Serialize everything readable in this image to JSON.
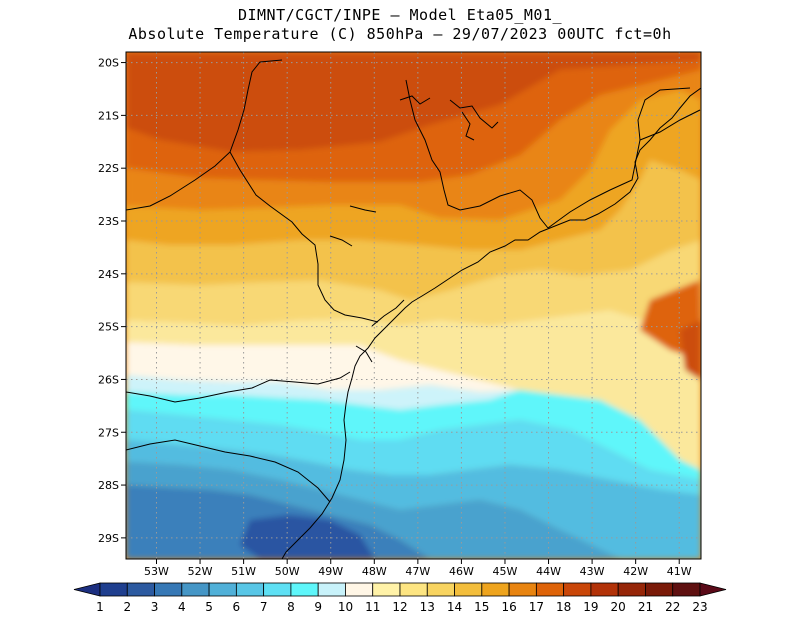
{
  "title": {
    "line1": "DIMNT/CGCT/INPE –  Model Eta05_M01_",
    "line2": "Absolute Temperature (C) 850hPa –  29/07/2023 00UTC fct=0h"
  },
  "map": {
    "lon_range": [
      -53.7,
      -40.5
    ],
    "lat_range": [
      -29.4,
      -19.8
    ],
    "lat_ticks": [
      {
        "value": -20,
        "label": "20S"
      },
      {
        "value": -21,
        "label": "21S"
      },
      {
        "value": -22,
        "label": "22S"
      },
      {
        "value": -23,
        "label": "23S"
      },
      {
        "value": -24,
        "label": "24S"
      },
      {
        "value": -25,
        "label": "25S"
      },
      {
        "value": -26,
        "label": "26S"
      },
      {
        "value": -27,
        "label": "27S"
      },
      {
        "value": -28,
        "label": "28S"
      },
      {
        "value": -29,
        "label": "29S"
      }
    ],
    "lon_ticks": [
      {
        "value": -53,
        "label": "53W"
      },
      {
        "value": -52,
        "label": "52W"
      },
      {
        "value": -51,
        "label": "51W"
      },
      {
        "value": -50,
        "label": "50W"
      },
      {
        "value": -49,
        "label": "49W"
      },
      {
        "value": -48,
        "label": "48W"
      },
      {
        "value": -47,
        "label": "47W"
      },
      {
        "value": -46,
        "label": "46W"
      },
      {
        "value": -45,
        "label": "45W"
      },
      {
        "value": -44,
        "label": "44W"
      },
      {
        "value": -43,
        "label": "43W"
      },
      {
        "value": -42,
        "label": "42W"
      },
      {
        "value": -41,
        "label": "41W"
      }
    ]
  },
  "colorbar": {
    "labels": [
      "1",
      "2",
      "3",
      "4",
      "5",
      "6",
      "7",
      "8",
      "9",
      "10",
      "11",
      "12",
      "13",
      "14",
      "15",
      "16",
      "17",
      "18",
      "19",
      "20",
      "21",
      "22",
      "23"
    ],
    "colors": [
      "#1f3f8f",
      "#2c5aa0",
      "#3678b5",
      "#4596c6",
      "#50b0d8",
      "#58c6e6",
      "#5ee0f4",
      "#5ef6fa",
      "#c8f2fa",
      "#fff6e6",
      "#fff2a8",
      "#fde582",
      "#f8d460",
      "#f3be3c",
      "#eea41e",
      "#e88410",
      "#de6308",
      "#c94608",
      "#b23208",
      "#962608",
      "#7a1a08",
      "#5f1010"
    ],
    "under_color": "#1c2f80",
    "over_color": "#5a0a18"
  },
  "field_colors": {
    "c5": "#2a55a2",
    "c6": "#3b80bb",
    "c7": "#48a2ce",
    "c8": "#52bce0",
    "c9": "#5edcf2",
    "c10": "#5ff6fa",
    "c11": "#cdf3fa",
    "c12": "#fff7e8",
    "c13": "#fbe89c",
    "c14": "#f8d874",
    "c15": "#f3c24c",
    "c16": "#eea522",
    "c17": "#e98512",
    "c18": "#de6409",
    "c19": "#cc4d08"
  }
}
